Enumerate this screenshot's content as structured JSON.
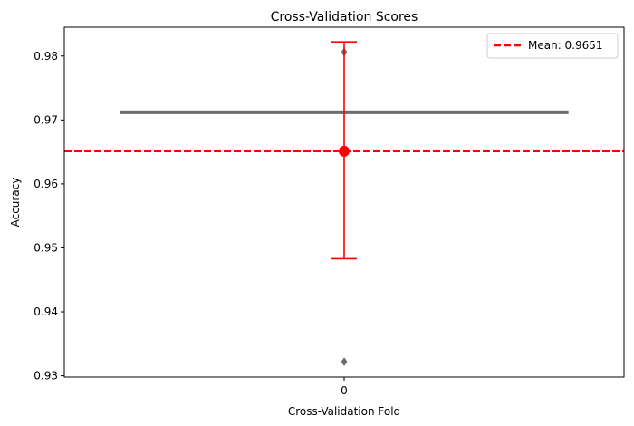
{
  "chart_data": {
    "type": "box",
    "title": "Cross-Validation Scores",
    "xlabel": "Cross-Validation Fold",
    "ylabel": "Accuracy",
    "categories": [
      "0"
    ],
    "ylim": [
      0.9298,
      0.9845
    ],
    "yticks": [
      0.93,
      0.94,
      0.95,
      0.96,
      0.97,
      0.98
    ],
    "yticklabels": [
      "0.93",
      "0.94",
      "0.95",
      "0.96",
      "0.97",
      "0.98"
    ],
    "box": {
      "category": "0",
      "q1": 0.9712,
      "median": 0.9712,
      "q3": 0.9712,
      "whisker_low": 0.9712,
      "whisker_high": 0.9712,
      "outliers": [
        0.9806,
        0.9322
      ],
      "color": "#6b6b6b"
    },
    "mean_point": {
      "x": "0",
      "value": 0.9651,
      "error_low": 0.9483,
      "error_high": 0.9822,
      "color": "#ff0000"
    },
    "mean_line": {
      "value": 0.9651,
      "label": "Mean: 0.9651",
      "color": "#ff0000",
      "style": "dashed"
    },
    "legend": {
      "position": "upper-right",
      "entries": [
        "Mean: 0.9651"
      ]
    },
    "grid": false
  }
}
